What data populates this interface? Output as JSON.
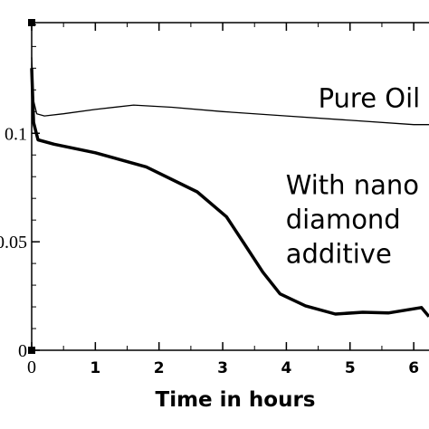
{
  "chart_data": {
    "type": "line",
    "x_label": "Time in hours",
    "xlim": [
      0,
      6.24
    ],
    "xticks": [
      0,
      1,
      2,
      3,
      4,
      5,
      6
    ],
    "ylim": [
      0,
      0.151
    ],
    "yticks": [
      0,
      0.05,
      0.1
    ],
    "series": [
      {
        "color": "#000000",
        "line_width": 1.3,
        "x": [
          0,
          0.03,
          0.08,
          0.2,
          0.5,
          1.0,
          1.6,
          2.2,
          3.0,
          4.0,
          5.0,
          6.0,
          6.24
        ],
        "values": [
          0.135,
          0.115,
          0.109,
          0.108,
          0.109,
          0.111,
          0.113,
          0.112,
          0.11,
          0.108,
          0.106,
          0.104,
          0.104
        ]
      },
      {
        "color": "#000000",
        "line_width": 3.5,
        "x": [
          0,
          0.03,
          0.1,
          0.35,
          1.0,
          1.8,
          2.6,
          3.06,
          3.34,
          3.63,
          3.9,
          4.3,
          4.77,
          5.2,
          5.6,
          6.12,
          6.24
        ],
        "values": [
          0.13,
          0.105,
          0.097,
          0.095,
          0.091,
          0.0845,
          0.073,
          0.0615,
          0.049,
          0.036,
          0.026,
          0.0205,
          0.0167,
          0.0175,
          0.0172,
          0.0197,
          0.0155
        ]
      }
    ],
    "annotations": [
      {
        "lines": [
          "Pure Oil"
        ],
        "x": 4.5,
        "y": 0.112
      },
      {
        "lines": [
          "With nano",
          "diamond",
          "additive"
        ],
        "x": 3.99,
        "y": 0.072
      }
    ]
  }
}
